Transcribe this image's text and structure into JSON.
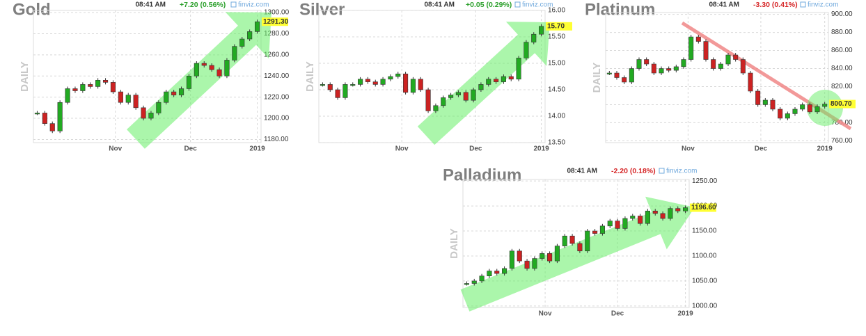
{
  "chart_data": [
    {
      "type": "candlestick",
      "title": "Gold",
      "time": "08:41 AM",
      "change": "+7.20 (0.56%)",
      "change_color": "#2ca02c",
      "source": "finviz.com",
      "ylabel": "DAILY",
      "last_label": "1291.30",
      "trend": "up",
      "x": [
        0,
        1,
        2,
        3,
        4,
        5,
        6,
        7,
        8,
        9,
        10,
        11,
        12,
        13,
        14,
        15,
        16,
        17,
        18,
        19,
        20,
        21,
        22,
        23,
        24,
        25,
        26,
        27,
        28,
        29
      ],
      "series": [
        {
          "name": "Gold",
          "color": "#22aa22",
          "down_color": "#cc2222",
          "values": [
            1205,
            1195,
            1188,
            1215,
            1228,
            1226,
            1232,
            1230,
            1236,
            1234,
            1225,
            1215,
            1222,
            1210,
            1200,
            1205,
            1215,
            1225,
            1222,
            1228,
            1240,
            1252,
            1250,
            1246,
            1240,
            1255,
            1268,
            1275,
            1282,
            1291.3
          ]
        }
      ],
      "xlim": [
        -0.5,
        29.5
      ],
      "xticks": [
        {
          "value": 10.3,
          "label": "Nov"
        },
        {
          "value": 20.2,
          "label": "Dec"
        },
        {
          "value": 29,
          "label": "2019"
        }
      ],
      "ylim": [
        1177,
        1302
      ],
      "yticks": [
        {
          "value": 1180,
          "label": "1180.00"
        },
        {
          "value": 1200,
          "label": "1200.00"
        },
        {
          "value": 1220,
          "label": "1220.00"
        },
        {
          "value": 1240,
          "label": "1240.00"
        },
        {
          "value": 1260,
          "label": "1260.00"
        },
        {
          "value": 1280,
          "label": "1280.00"
        },
        {
          "value": 1300,
          "label": "1300.00"
        }
      ],
      "grid": true
    },
    {
      "type": "candlestick",
      "title": "Silver",
      "time": "08:41 AM",
      "change": "+0.05 (0.29%)",
      "change_color": "#2ca02c",
      "source": "finviz.com",
      "ylabel": "DAILY",
      "last_label": "15.70",
      "trend": "up",
      "x": [
        0,
        1,
        2,
        3,
        4,
        5,
        6,
        7,
        8,
        9,
        10,
        11,
        12,
        13,
        14,
        15,
        16,
        17,
        18,
        19,
        20,
        21,
        22,
        23,
        24,
        25,
        26,
        27,
        28,
        29
      ],
      "series": [
        {
          "name": "Silver",
          "color": "#22aa22",
          "down_color": "#cc2222",
          "values": [
            14.6,
            14.5,
            14.35,
            14.6,
            14.6,
            14.7,
            14.65,
            14.6,
            14.7,
            14.75,
            14.8,
            14.45,
            14.7,
            14.5,
            14.1,
            14.2,
            14.35,
            14.4,
            14.45,
            14.3,
            14.5,
            14.6,
            14.7,
            14.65,
            14.75,
            14.7,
            15.1,
            15.4,
            15.55,
            15.7
          ]
        }
      ],
      "xlim": [
        -0.5,
        29.5
      ],
      "xticks": [
        {
          "value": 10.5,
          "label": "Nov"
        },
        {
          "value": 20.3,
          "label": "Dec"
        },
        {
          "value": 29,
          "label": "2019"
        }
      ],
      "ylim": [
        13.5,
        16
      ],
      "yticks": [
        {
          "value": 13.5,
          "label": "13.50"
        },
        {
          "value": 14,
          "label": "14.00"
        },
        {
          "value": 14.5,
          "label": "14.50"
        },
        {
          "value": 15,
          "label": "15.00"
        },
        {
          "value": 15.5,
          "label": "15.50"
        },
        {
          "value": 16,
          "label": "16.00"
        }
      ],
      "grid": true
    },
    {
      "type": "candlestick",
      "title": "Platinum",
      "time": "08:41 AM",
      "change": "-3.30 (0.41%)",
      "change_color": "#d62728",
      "source": "finviz.com",
      "ylabel": "DAILY",
      "last_label": "800.70",
      "trend": "down",
      "x": [
        0,
        1,
        2,
        3,
        4,
        5,
        6,
        7,
        8,
        9,
        10,
        11,
        12,
        13,
        14,
        15,
        16,
        17,
        18,
        19,
        20,
        21,
        22,
        23,
        24,
        25,
        26,
        27,
        28,
        29
      ],
      "series": [
        {
          "name": "Platinum",
          "color": "#22aa22",
          "down_color": "#cc2222",
          "values": [
            835,
            830,
            825,
            840,
            850,
            845,
            835,
            840,
            838,
            842,
            850,
            875,
            870,
            850,
            840,
            845,
            855,
            850,
            835,
            815,
            800,
            805,
            795,
            785,
            790,
            795,
            800,
            792,
            798,
            800.7
          ]
        }
      ],
      "xlim": [
        -0.5,
        29.5
      ],
      "xticks": [
        {
          "value": 10.6,
          "label": "Nov"
        },
        {
          "value": 20.4,
          "label": "Dec"
        },
        {
          "value": 29,
          "label": "2019"
        }
      ],
      "ylim": [
        758,
        902
      ],
      "yticks": [
        {
          "value": 760,
          "label": "760.00"
        },
        {
          "value": 780,
          "label": "780.00"
        },
        {
          "value": 800,
          "label": "800.00"
        },
        {
          "value": 820,
          "label": "820.00"
        },
        {
          "value": 840,
          "label": "840.00"
        },
        {
          "value": 860,
          "label": "860.00"
        },
        {
          "value": 880,
          "label": "880.00"
        },
        {
          "value": 900,
          "label": "900.00"
        }
      ],
      "grid": true
    },
    {
      "type": "candlestick",
      "title": "Palladium",
      "time": "08:41 AM",
      "change": "-2.20 (0.18%)",
      "change_color": "#d62728",
      "source": "finviz.com",
      "ylabel": "DAILY",
      "last_label": "1196.60",
      "trend": "up",
      "x": [
        0,
        1,
        2,
        3,
        4,
        5,
        6,
        7,
        8,
        9,
        10,
        11,
        12,
        13,
        14,
        15,
        16,
        17,
        18,
        19,
        20,
        21,
        22,
        23,
        24,
        25,
        26,
        27,
        28,
        29
      ],
      "series": [
        {
          "name": "Palladium",
          "color": "#22aa22",
          "down_color": "#cc2222",
          "values": [
            1045,
            1050,
            1060,
            1070,
            1065,
            1075,
            1110,
            1090,
            1075,
            1095,
            1105,
            1090,
            1120,
            1140,
            1125,
            1110,
            1150,
            1145,
            1160,
            1170,
            1155,
            1175,
            1180,
            1165,
            1190,
            1185,
            1175,
            1195,
            1190,
            1196.6
          ]
        }
      ],
      "xlim": [
        -0.5,
        29.5
      ],
      "xticks": [
        {
          "value": 10.4,
          "label": "Nov"
        },
        {
          "value": 20,
          "label": "Dec"
        },
        {
          "value": 29,
          "label": "2019"
        }
      ],
      "ylim": [
        997,
        1253
      ],
      "yticks": [
        {
          "value": 1000,
          "label": "1000.00"
        },
        {
          "value": 1050,
          "label": "1050.00"
        },
        {
          "value": 1100,
          "label": "1100.00"
        },
        {
          "value": 1150,
          "label": "1150.00"
        },
        {
          "value": 1200,
          "label": "1200.00"
        },
        {
          "value": 1250,
          "label": "1250.00"
        }
      ],
      "grid": true
    }
  ]
}
